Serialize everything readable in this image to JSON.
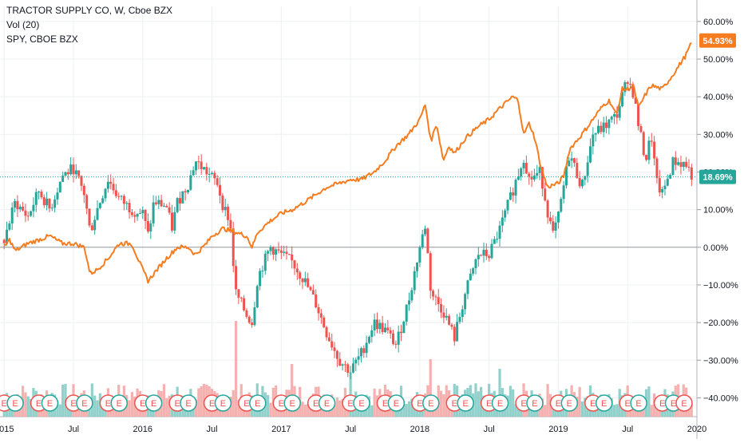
{
  "legend": {
    "symbol": "TRACTOR SUPPLY CO, W, Cboe BZX",
    "volume": "Vol (20)",
    "compare": "SPY, CBOE BZX"
  },
  "colors": {
    "up": "#26a69a",
    "down": "#ef5350",
    "spy": "#f57c1f",
    "grid": "#eef0f3",
    "axis_text": "#131722"
  },
  "chart_data": {
    "type": "line",
    "y_axis": {
      "unit": "percent",
      "ticks": [
        "60.00%",
        "50.00%",
        "40.00%",
        "30.00%",
        "20.00%",
        "10.00%",
        "0.00%",
        "−10.00%",
        "−20.00%",
        "−30.00%",
        "−40.00%"
      ],
      "tick_values": [
        60,
        50,
        40,
        30,
        20,
        10,
        0,
        -10,
        -20,
        -30,
        -40
      ],
      "range": [
        -45,
        64
      ]
    },
    "x_axis": {
      "ticks": [
        "2015",
        "Jul",
        "2016",
        "Jul",
        "2017",
        "Jul",
        "2018",
        "Jul",
        "2019",
        "Jul",
        "2020"
      ],
      "tick_years": [
        2015.0,
        2015.5,
        2016.0,
        2016.5,
        2017.0,
        2017.5,
        2018.0,
        2018.5,
        2019.0,
        2019.5,
        2020.0
      ],
      "range": [
        2014.97,
        2020.0
      ]
    },
    "last_value_labels": {
      "spy": "54.93%",
      "tsco": "18.69%"
    },
    "zero_line": 0,
    "series": [
      {
        "key": "tsco",
        "style": "candlestick",
        "points": [
          [
            2015.0,
            2
          ],
          [
            2015.08,
            12
          ],
          [
            2015.17,
            8
          ],
          [
            2015.25,
            15
          ],
          [
            2015.33,
            10
          ],
          [
            2015.42,
            19
          ],
          [
            2015.5,
            21
          ],
          [
            2015.58,
            14
          ],
          [
            2015.62,
            4
          ],
          [
            2015.67,
            10
          ],
          [
            2015.75,
            18
          ],
          [
            2015.83,
            13
          ],
          [
            2015.92,
            10
          ],
          [
            2016.0,
            9
          ],
          [
            2016.04,
            3
          ],
          [
            2016.08,
            12
          ],
          [
            2016.17,
            11
          ],
          [
            2016.21,
            5
          ],
          [
            2016.25,
            12
          ],
          [
            2016.33,
            17
          ],
          [
            2016.38,
            23
          ],
          [
            2016.46,
            20
          ],
          [
            2016.54,
            17
          ],
          [
            2016.58,
            11
          ],
          [
            2016.63,
            7
          ],
          [
            2016.67,
            -12
          ],
          [
            2016.75,
            -18
          ],
          [
            2016.79,
            -20
          ],
          [
            2016.83,
            -8
          ],
          [
            2016.92,
            0
          ],
          [
            2017.0,
            -2
          ],
          [
            2017.08,
            -4
          ],
          [
            2017.17,
            -9
          ],
          [
            2017.25,
            -15
          ],
          [
            2017.33,
            -23
          ],
          [
            2017.42,
            -30
          ],
          [
            2017.5,
            -33
          ],
          [
            2017.58,
            -28
          ],
          [
            2017.67,
            -20
          ],
          [
            2017.75,
            -22
          ],
          [
            2017.83,
            -26
          ],
          [
            2017.92,
            -14
          ],
          [
            2018.0,
            0
          ],
          [
            2018.04,
            6
          ],
          [
            2018.08,
            -12
          ],
          [
            2018.17,
            -17
          ],
          [
            2018.25,
            -24
          ],
          [
            2018.33,
            -12
          ],
          [
            2018.42,
            -2
          ],
          [
            2018.5,
            -2
          ],
          [
            2018.58,
            5
          ],
          [
            2018.67,
            15
          ],
          [
            2018.75,
            24
          ],
          [
            2018.79,
            18
          ],
          [
            2018.87,
            20
          ],
          [
            2018.92,
            10
          ],
          [
            2018.96,
            3
          ],
          [
            2019.0,
            8
          ],
          [
            2019.08,
            25
          ],
          [
            2019.17,
            16
          ],
          [
            2019.25,
            30
          ],
          [
            2019.33,
            32
          ],
          [
            2019.42,
            35
          ],
          [
            2019.5,
            45
          ],
          [
            2019.54,
            41
          ],
          [
            2019.58,
            32
          ],
          [
            2019.63,
            23
          ],
          [
            2019.67,
            30
          ],
          [
            2019.71,
            17
          ],
          [
            2019.75,
            14
          ],
          [
            2019.83,
            23
          ],
          [
            2019.92,
            22
          ],
          [
            2019.97,
            18.69
          ]
        ]
      },
      {
        "key": "spy",
        "style": "line",
        "points": [
          [
            2015.0,
            0
          ],
          [
            2015.04,
            2
          ],
          [
            2015.08,
            -1
          ],
          [
            2015.17,
            1
          ],
          [
            2015.25,
            2
          ],
          [
            2015.33,
            3
          ],
          [
            2015.42,
            1
          ],
          [
            2015.5,
            1
          ],
          [
            2015.58,
            0
          ],
          [
            2015.62,
            -7
          ],
          [
            2015.67,
            -6
          ],
          [
            2015.75,
            -3
          ],
          [
            2015.83,
            1
          ],
          [
            2015.92,
            1
          ],
          [
            2016.0,
            -6
          ],
          [
            2016.04,
            -9
          ],
          [
            2016.08,
            -7
          ],
          [
            2016.17,
            -3
          ],
          [
            2016.25,
            0
          ],
          [
            2016.33,
            0
          ],
          [
            2016.38,
            -2
          ],
          [
            2016.46,
            1
          ],
          [
            2016.5,
            3
          ],
          [
            2016.58,
            5
          ],
          [
            2016.67,
            4
          ],
          [
            2016.75,
            3
          ],
          [
            2016.79,
            0
          ],
          [
            2016.83,
            4
          ],
          [
            2016.92,
            7
          ],
          [
            2017.0,
            9
          ],
          [
            2017.08,
            10
          ],
          [
            2017.17,
            12
          ],
          [
            2017.25,
            14
          ],
          [
            2017.33,
            16
          ],
          [
            2017.42,
            17
          ],
          [
            2017.5,
            18
          ],
          [
            2017.58,
            18
          ],
          [
            2017.67,
            20
          ],
          [
            2017.75,
            23
          ],
          [
            2017.83,
            27
          ],
          [
            2017.92,
            30
          ],
          [
            2018.0,
            34
          ],
          [
            2018.04,
            38
          ],
          [
            2018.08,
            28
          ],
          [
            2018.12,
            33
          ],
          [
            2018.17,
            23
          ],
          [
            2018.21,
            27
          ],
          [
            2018.25,
            25
          ],
          [
            2018.33,
            29
          ],
          [
            2018.42,
            32
          ],
          [
            2018.5,
            34
          ],
          [
            2018.58,
            37
          ],
          [
            2018.67,
            40
          ],
          [
            2018.71,
            39
          ],
          [
            2018.75,
            30
          ],
          [
            2018.79,
            33
          ],
          [
            2018.83,
            29
          ],
          [
            2018.87,
            22
          ],
          [
            2018.92,
            16
          ],
          [
            2019.0,
            17
          ],
          [
            2019.04,
            19
          ],
          [
            2019.08,
            26
          ],
          [
            2019.17,
            30
          ],
          [
            2019.25,
            34
          ],
          [
            2019.33,
            38
          ],
          [
            2019.37,
            39
          ],
          [
            2019.42,
            35
          ],
          [
            2019.46,
            42
          ],
          [
            2019.5,
            42
          ],
          [
            2019.54,
            43
          ],
          [
            2019.58,
            37
          ],
          [
            2019.62,
            40
          ],
          [
            2019.67,
            43
          ],
          [
            2019.75,
            42
          ],
          [
            2019.83,
            46
          ],
          [
            2019.92,
            51
          ],
          [
            2019.97,
            54.93
          ]
        ]
      },
      {
        "key": "volume",
        "style": "volume",
        "note": "relative weekly volume bars at bottom of pane",
        "spikes": [
          [
            2016.67,
            1.0
          ],
          [
            2017.08,
            0.55
          ],
          [
            2017.5,
            0.45
          ],
          [
            2018.08,
            0.6
          ],
          [
            2018.58,
            0.5
          ]
        ]
      }
    ],
    "events": {
      "label": "E",
      "positions": [
        2015.0,
        2015.08,
        2015.25,
        2015.33,
        2015.5,
        2015.58,
        2015.75,
        2015.83,
        2016.0,
        2016.08,
        2016.25,
        2016.33,
        2016.5,
        2016.58,
        2016.75,
        2016.83,
        2017.0,
        2017.08,
        2017.25,
        2017.33,
        2017.5,
        2017.58,
        2017.75,
        2017.83,
        2018.0,
        2018.08,
        2018.25,
        2018.33,
        2018.5,
        2018.58,
        2018.75,
        2018.83,
        2019.0,
        2019.08,
        2019.25,
        2019.33,
        2019.5,
        2019.58,
        2019.75,
        2019.83,
        2020.0
      ]
    }
  }
}
